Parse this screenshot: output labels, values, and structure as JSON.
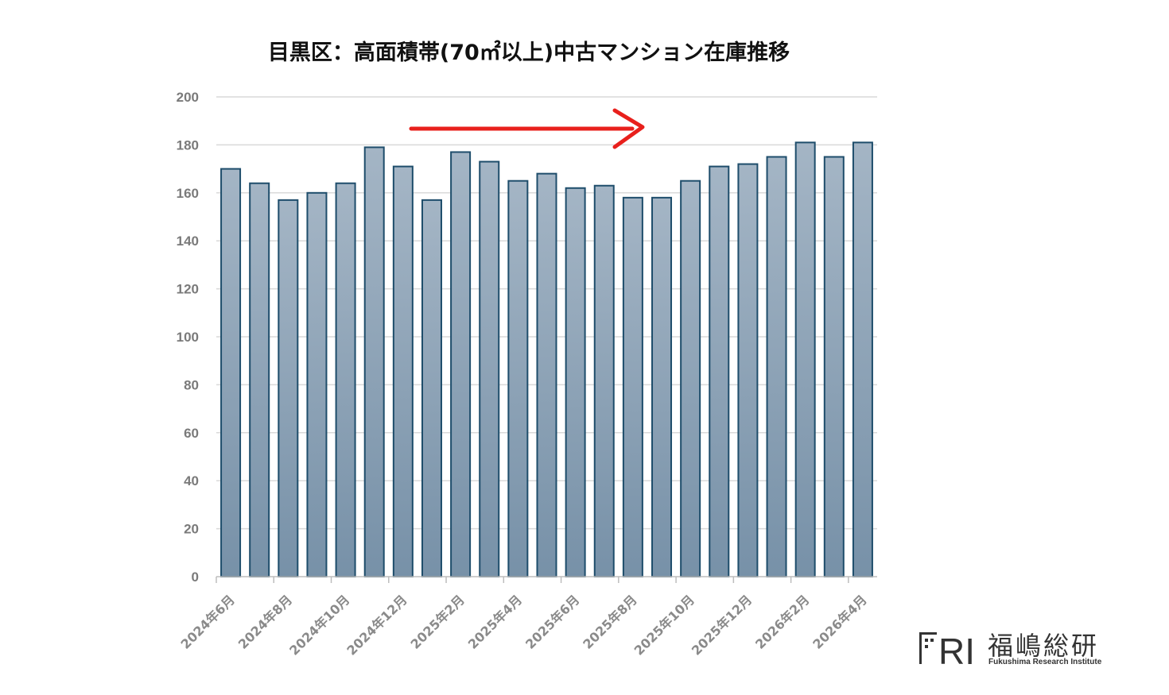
{
  "chart_data": {
    "type": "bar",
    "title": "目黒区：高面積帯(70㎡以上)中古マンション在庫推移",
    "xlabel": "",
    "ylabel": "",
    "ylim": [
      0,
      200
    ],
    "yticks": [
      0,
      20,
      40,
      60,
      80,
      100,
      120,
      140,
      160,
      180,
      200
    ],
    "grid": true,
    "legend": "none",
    "categories": [
      "2024年6月",
      "2024年7月",
      "2024年8月",
      "2024年9月",
      "2024年10月",
      "2024年11月",
      "2024年12月",
      "2025年1月",
      "2025年2月",
      "2025年3月",
      "2025年4月",
      "2025年5月",
      "2025年6月",
      "2025年7月",
      "2025年8月",
      "2025年9月",
      "2025年10月",
      "2025年11月",
      "2025年12月",
      "2026年1月",
      "2026年2月",
      "2026年3月",
      "2026年4月"
    ],
    "tick_labels": [
      "2024年6月",
      "2024年8月",
      "2024年10月",
      "2024年12月",
      "2025年2月",
      "2025年4月",
      "2025年6月",
      "2025年8月",
      "2025年10月",
      "2025年12月",
      "2026年2月",
      "2026年4月"
    ],
    "values": [
      170,
      164,
      157,
      160,
      164,
      179,
      171,
      157,
      177,
      173,
      165,
      168,
      162,
      163,
      158,
      158,
      165,
      171,
      172,
      175,
      181,
      175,
      181
    ],
    "annotations": [
      {
        "type": "arrow",
        "direction": "right",
        "color": "#e8201c"
      }
    ],
    "colors": {
      "bar_top": "#a4b5c5",
      "bar_bottom": "#7791a8",
      "bar_edge": "#1e4d6b",
      "grid": "#d9d9d9"
    }
  },
  "logo": {
    "mark": "FRI",
    "kanji": "福嶋総研",
    "english": "Fukushima Research Institute"
  }
}
